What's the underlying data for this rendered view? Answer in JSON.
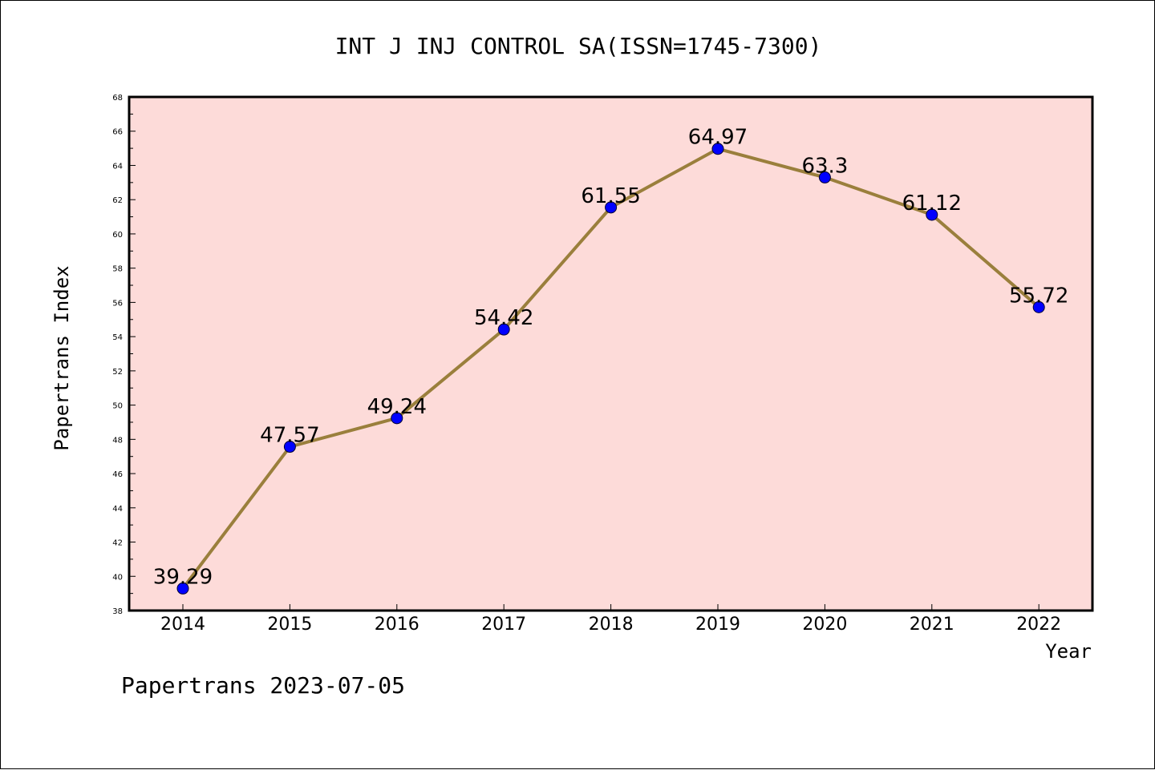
{
  "chart_data": {
    "type": "line",
    "title": "INT J INJ CONTROL SA(ISSN=1745-7300)",
    "xlabel": "Year",
    "ylabel": "Papertrans Index",
    "categories": [
      "2014",
      "2015",
      "2016",
      "2017",
      "2018",
      "2019",
      "2020",
      "2021",
      "2022"
    ],
    "series": [
      {
        "values": [
          39.29,
          47.57,
          49.24,
          54.42,
          61.55,
          64.97,
          63.3,
          61.12,
          55.72
        ],
        "labels": [
          "39.29",
          "47.57",
          "49.24",
          "54.42",
          "61.55",
          "64.97",
          "63.3",
          "61.12",
          "55.72"
        ],
        "line_color": "#9a7f3c",
        "marker_color": "#0000ff"
      }
    ],
    "ylim": [
      38,
      68
    ],
    "yticks": [
      "38",
      "40",
      "42",
      "44",
      "46",
      "48",
      "50",
      "52",
      "54",
      "56",
      "58",
      "60",
      "62",
      "64",
      "66",
      "68"
    ],
    "plot_background": "#fddbd9",
    "grid": false
  },
  "footer": "Papertrans 2023-07-05"
}
